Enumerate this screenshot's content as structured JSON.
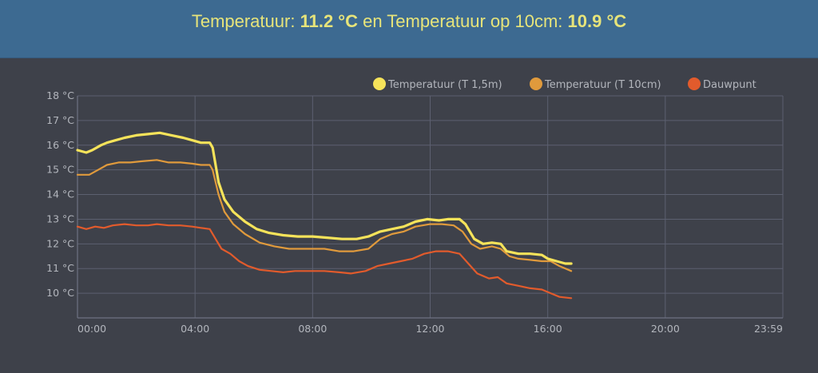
{
  "header": {
    "label1": "Temperatuur:",
    "value1": "11.2 °C",
    "between": "en Temperatuur op 10cm:",
    "value2": "10.9 °C"
  },
  "chart_data": {
    "type": "line",
    "x_unit": "hours",
    "xlim": [
      0,
      24
    ],
    "ylim": [
      9,
      18
    ],
    "grid": true,
    "legend_position": "top-right",
    "x_tick_values": [
      0,
      4,
      8,
      12,
      16,
      20,
      24
    ],
    "x_tick_labels": [
      "00:00",
      "04:00",
      "08:00",
      "12:00",
      "16:00",
      "20:00",
      "23:59"
    ],
    "y_tick_values": [
      10,
      11,
      12,
      13,
      14,
      15,
      16,
      17,
      18
    ],
    "y_tick_labels": [
      "10 °C",
      "11 °C",
      "12 °C",
      "13 °C",
      "14 °C",
      "15 °C",
      "16 °C",
      "17 °C",
      "18 °C"
    ],
    "series": [
      {
        "name": "Temperatuur (T 1,5m)",
        "color": "#f5e35a",
        "points": [
          [
            0,
            15.8
          ],
          [
            0.3,
            15.7
          ],
          [
            0.5,
            15.8
          ],
          [
            0.8,
            16.0
          ],
          [
            1.0,
            16.1
          ],
          [
            1.3,
            16.2
          ],
          [
            1.6,
            16.3
          ],
          [
            2.0,
            16.4
          ],
          [
            2.4,
            16.45
          ],
          [
            2.8,
            16.5
          ],
          [
            3.2,
            16.4
          ],
          [
            3.6,
            16.3
          ],
          [
            3.9,
            16.2
          ],
          [
            4.2,
            16.1
          ],
          [
            4.5,
            16.1
          ],
          [
            4.6,
            15.9
          ],
          [
            4.8,
            14.5
          ],
          [
            5.0,
            13.8
          ],
          [
            5.3,
            13.3
          ],
          [
            5.7,
            12.9
          ],
          [
            6.1,
            12.6
          ],
          [
            6.5,
            12.45
          ],
          [
            7.0,
            12.35
          ],
          [
            7.5,
            12.3
          ],
          [
            8.0,
            12.3
          ],
          [
            8.5,
            12.25
          ],
          [
            9.0,
            12.2
          ],
          [
            9.5,
            12.2
          ],
          [
            9.9,
            12.3
          ],
          [
            10.3,
            12.5
          ],
          [
            10.7,
            12.6
          ],
          [
            11.1,
            12.7
          ],
          [
            11.5,
            12.9
          ],
          [
            11.9,
            13.0
          ],
          [
            12.3,
            12.95
          ],
          [
            12.6,
            13.0
          ],
          [
            13.0,
            13.0
          ],
          [
            13.2,
            12.8
          ],
          [
            13.5,
            12.2
          ],
          [
            13.8,
            12.0
          ],
          [
            14.1,
            12.05
          ],
          [
            14.4,
            12.0
          ],
          [
            14.6,
            11.7
          ],
          [
            15.0,
            11.6
          ],
          [
            15.4,
            11.6
          ],
          [
            15.8,
            11.55
          ],
          [
            16.0,
            11.4
          ],
          [
            16.3,
            11.3
          ],
          [
            16.6,
            11.2
          ],
          [
            16.8,
            11.2
          ]
        ]
      },
      {
        "name": "Temperatuur (T 10cm)",
        "color": "#e09a3c",
        "points": [
          [
            0,
            14.8
          ],
          [
            0.4,
            14.8
          ],
          [
            0.7,
            15.0
          ],
          [
            1.0,
            15.2
          ],
          [
            1.4,
            15.3
          ],
          [
            1.8,
            15.3
          ],
          [
            2.2,
            15.35
          ],
          [
            2.7,
            15.4
          ],
          [
            3.1,
            15.3
          ],
          [
            3.5,
            15.3
          ],
          [
            3.9,
            15.25
          ],
          [
            4.2,
            15.2
          ],
          [
            4.5,
            15.2
          ],
          [
            4.6,
            15.0
          ],
          [
            4.8,
            14.0
          ],
          [
            5.0,
            13.3
          ],
          [
            5.3,
            12.8
          ],
          [
            5.7,
            12.4
          ],
          [
            6.2,
            12.05
          ],
          [
            6.7,
            11.9
          ],
          [
            7.2,
            11.8
          ],
          [
            7.8,
            11.8
          ],
          [
            8.4,
            11.8
          ],
          [
            8.9,
            11.7
          ],
          [
            9.4,
            11.7
          ],
          [
            9.9,
            11.8
          ],
          [
            10.3,
            12.2
          ],
          [
            10.7,
            12.4
          ],
          [
            11.1,
            12.5
          ],
          [
            11.5,
            12.7
          ],
          [
            12.0,
            12.8
          ],
          [
            12.4,
            12.8
          ],
          [
            12.8,
            12.75
          ],
          [
            13.1,
            12.5
          ],
          [
            13.4,
            12.0
          ],
          [
            13.7,
            11.8
          ],
          [
            14.1,
            11.9
          ],
          [
            14.4,
            11.8
          ],
          [
            14.7,
            11.5
          ],
          [
            15.0,
            11.4
          ],
          [
            15.4,
            11.35
          ],
          [
            15.8,
            11.3
          ],
          [
            16.1,
            11.3
          ],
          [
            16.4,
            11.1
          ],
          [
            16.8,
            10.9
          ]
        ]
      },
      {
        "name": "Dauwpunt",
        "color": "#e25b2c",
        "points": [
          [
            0,
            12.7
          ],
          [
            0.3,
            12.6
          ],
          [
            0.6,
            12.7
          ],
          [
            0.9,
            12.65
          ],
          [
            1.2,
            12.75
          ],
          [
            1.6,
            12.8
          ],
          [
            2.0,
            12.75
          ],
          [
            2.4,
            12.75
          ],
          [
            2.7,
            12.8
          ],
          [
            3.1,
            12.75
          ],
          [
            3.5,
            12.75
          ],
          [
            3.9,
            12.7
          ],
          [
            4.2,
            12.65
          ],
          [
            4.5,
            12.6
          ],
          [
            4.7,
            12.2
          ],
          [
            4.9,
            11.8
          ],
          [
            5.2,
            11.6
          ],
          [
            5.5,
            11.3
          ],
          [
            5.8,
            11.1
          ],
          [
            6.2,
            10.95
          ],
          [
            6.6,
            10.9
          ],
          [
            7.0,
            10.85
          ],
          [
            7.4,
            10.9
          ],
          [
            7.9,
            10.9
          ],
          [
            8.4,
            10.9
          ],
          [
            8.9,
            10.85
          ],
          [
            9.3,
            10.8
          ],
          [
            9.8,
            10.9
          ],
          [
            10.2,
            11.1
          ],
          [
            10.6,
            11.2
          ],
          [
            11.0,
            11.3
          ],
          [
            11.4,
            11.4
          ],
          [
            11.8,
            11.6
          ],
          [
            12.2,
            11.7
          ],
          [
            12.6,
            11.7
          ],
          [
            13.0,
            11.6
          ],
          [
            13.3,
            11.2
          ],
          [
            13.6,
            10.8
          ],
          [
            14.0,
            10.6
          ],
          [
            14.3,
            10.65
          ],
          [
            14.6,
            10.4
          ],
          [
            15.0,
            10.3
          ],
          [
            15.4,
            10.2
          ],
          [
            15.8,
            10.15
          ],
          [
            16.1,
            10.0
          ],
          [
            16.4,
            9.85
          ],
          [
            16.8,
            9.8
          ]
        ]
      }
    ]
  }
}
